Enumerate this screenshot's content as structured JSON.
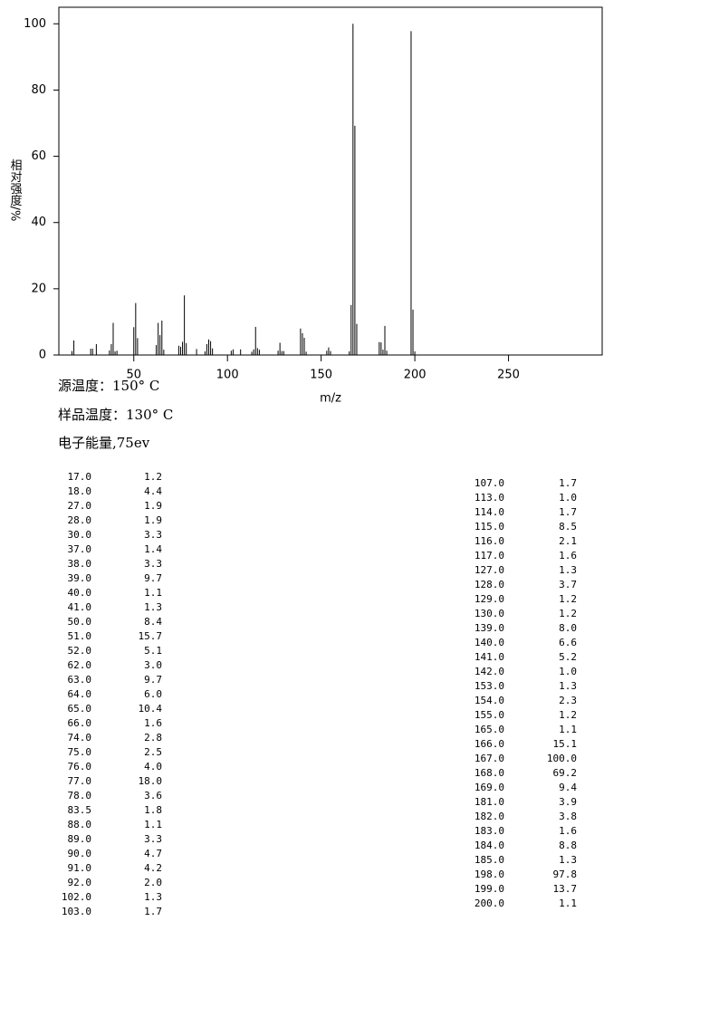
{
  "chart_data": {
    "type": "bar",
    "ylabel": "相对强度/%",
    "xlabel": "m/z",
    "notes": [
      "源温度：150° C",
      "样品温度：130° C",
      "电子能量,75ev"
    ],
    "xlim": [
      10,
      300
    ],
    "ylim": [
      0,
      105
    ],
    "xticks": [
      50,
      100,
      150,
      200,
      250
    ],
    "yticks": [
      0,
      20,
      40,
      60,
      80,
      100
    ],
    "color": "#000000",
    "x": [
      17,
      18,
      27,
      28,
      30,
      37,
      38,
      39,
      40,
      41,
      50,
      51,
      52,
      62,
      63,
      64,
      65,
      66,
      74,
      75,
      76,
      77,
      78,
      83.5,
      88,
      89,
      90,
      91,
      92,
      102,
      103,
      107,
      113,
      114,
      115,
      116,
      117,
      127,
      128,
      129,
      130,
      139,
      140,
      141,
      142,
      153,
      154,
      155,
      165,
      166,
      167,
      168,
      169,
      181,
      182,
      183,
      184,
      185,
      198,
      199,
      200
    ],
    "x_labels": [
      "17.0",
      "18.0",
      "27.0",
      "28.0",
      "30.0",
      "37.0",
      "38.0",
      "39.0",
      "40.0",
      "41.0",
      "50.0",
      "51.0",
      "52.0",
      "62.0",
      "63.0",
      "64.0",
      "65.0",
      "66.0",
      "74.0",
      "75.0",
      "76.0",
      "77.0",
      "78.0",
      "83.5",
      "88.0",
      "89.0",
      "90.0",
      "91.0",
      "92.0",
      "102.0",
      "103.0",
      "107.0",
      "113.0",
      "114.0",
      "115.0",
      "116.0",
      "117.0",
      "127.0",
      "128.0",
      "129.0",
      "130.0",
      "139.0",
      "140.0",
      "141.0",
      "142.0",
      "153.0",
      "154.0",
      "155.0",
      "165.0",
      "166.0",
      "167.0",
      "168.0",
      "169.0",
      "181.0",
      "182.0",
      "183.0",
      "184.0",
      "185.0",
      "198.0",
      "199.0",
      "200.0"
    ],
    "values": [
      1.2,
      4.4,
      1.9,
      1.9,
      3.3,
      1.4,
      3.3,
      9.7,
      1.1,
      1.3,
      8.4,
      15.7,
      5.1,
      3.0,
      9.7,
      6.0,
      10.4,
      1.6,
      2.8,
      2.5,
      4.0,
      18.0,
      3.6,
      1.8,
      1.1,
      3.3,
      4.7,
      4.2,
      2.0,
      1.3,
      1.7,
      1.7,
      1.0,
      1.7,
      8.5,
      2.1,
      1.6,
      1.3,
      3.7,
      1.2,
      1.2,
      8.0,
      6.6,
      5.2,
      1.0,
      1.3,
      2.3,
      1.2,
      1.1,
      15.1,
      100.0,
      69.2,
      9.4,
      3.9,
      3.8,
      1.6,
      8.8,
      1.3,
      97.8,
      13.7,
      1.1
    ],
    "value_labels": [
      "1.2",
      "4.4",
      "1.9",
      "1.9",
      "3.3",
      "1.4",
      "3.3",
      "9.7",
      "1.1",
      "1.3",
      "8.4",
      "15.7",
      "5.1",
      "3.0",
      "9.7",
      "6.0",
      "10.4",
      "1.6",
      "2.8",
      "2.5",
      "4.0",
      "18.0",
      "3.6",
      "1.8",
      "1.1",
      "3.3",
      "4.7",
      "4.2",
      "2.0",
      "1.3",
      "1.7",
      "1.7",
      "1.0",
      "1.7",
      "8.5",
      "2.1",
      "1.6",
      "1.3",
      "3.7",
      "1.2",
      "1.2",
      "8.0",
      "6.6",
      "5.2",
      "1.0",
      "1.3",
      "2.3",
      "1.2",
      "1.1",
      "15.1",
      "100.0",
      "69.2",
      "9.4",
      "3.9",
      "3.8",
      "1.6",
      "8.8",
      "1.3",
      "97.8",
      "13.7",
      "1.1"
    ]
  }
}
